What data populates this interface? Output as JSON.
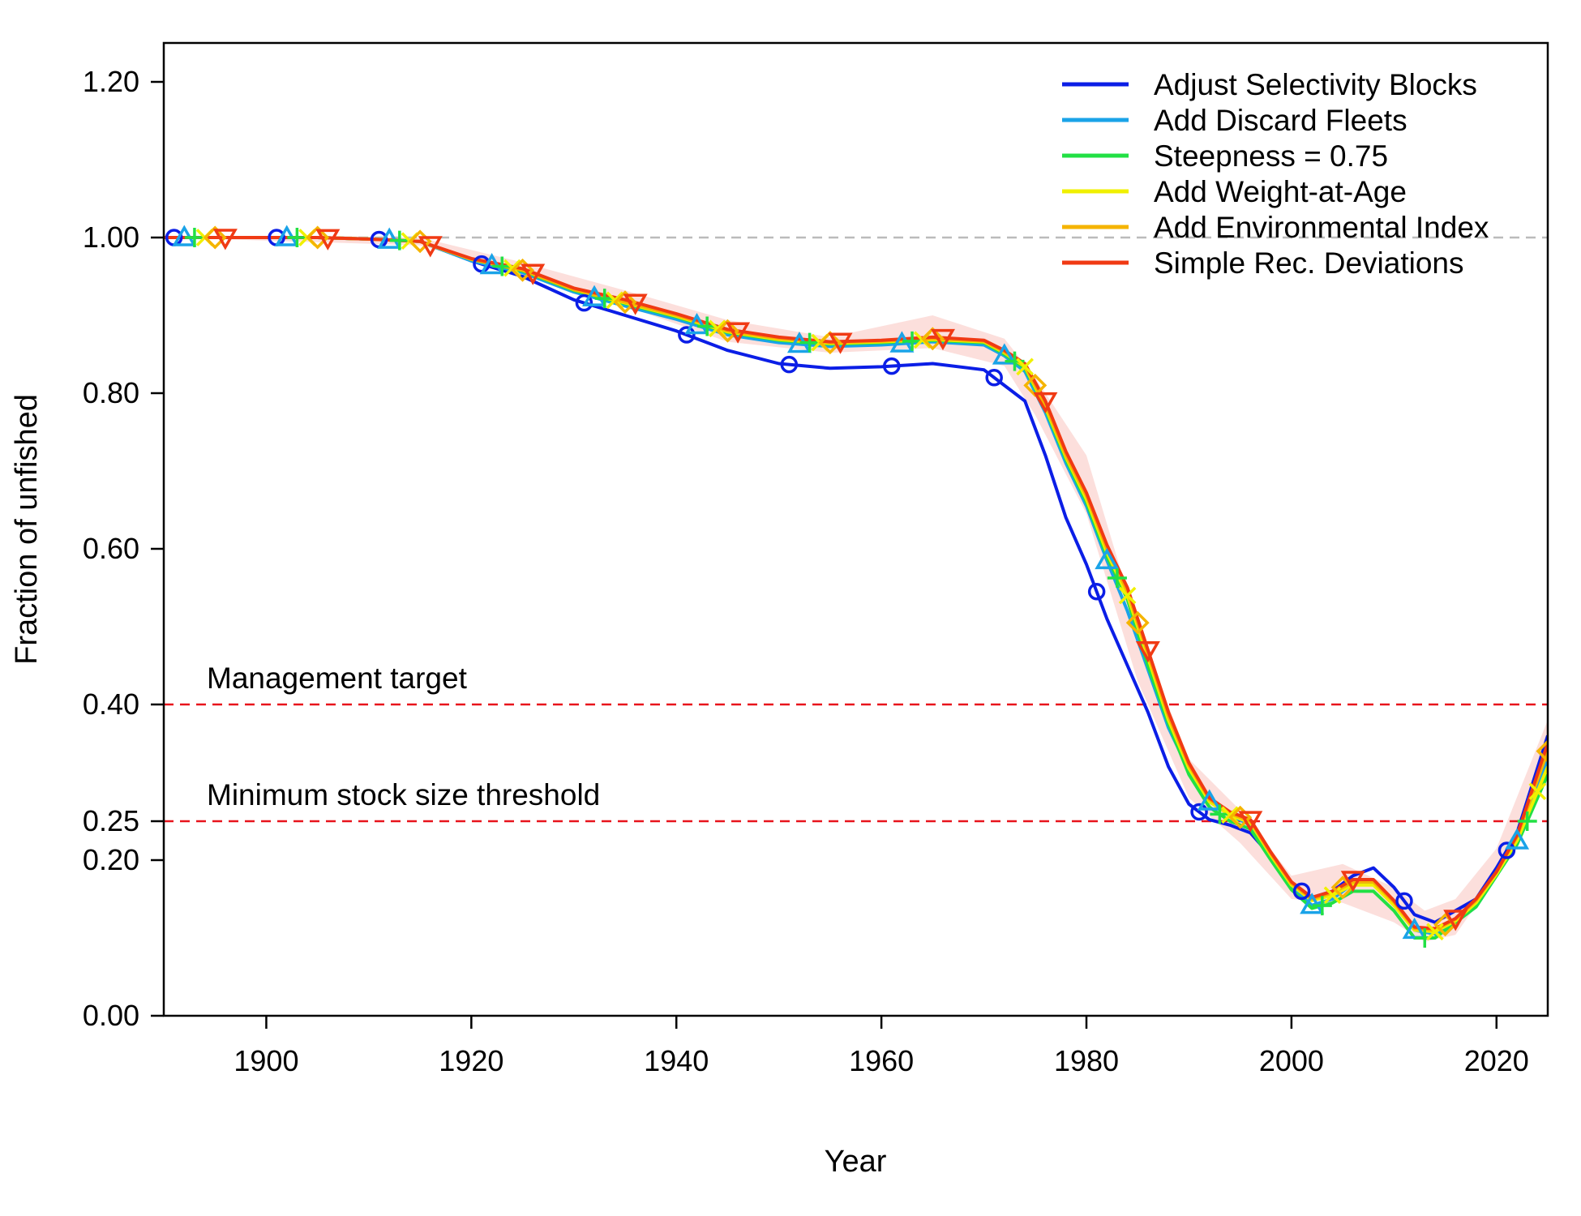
{
  "chart_data": {
    "type": "line",
    "title": "",
    "xlabel": "Year",
    "ylabel": "Fraction of unfished",
    "xlim": [
      1890,
      2025
    ],
    "ylim": [
      0,
      1.25
    ],
    "x_ticks": [
      1900,
      1920,
      1940,
      1960,
      1980,
      2000,
      2020
    ],
    "x_tick_labels": [
      "1900",
      "1920",
      "1940",
      "1960",
      "1980",
      "2000",
      "2020"
    ],
    "y_ticks": [
      0.0,
      0.2,
      0.25,
      0.4,
      0.6,
      0.8,
      1.0,
      1.2
    ],
    "y_tick_labels": [
      "0.00",
      "0.20",
      "0.25",
      "0.40",
      "0.60",
      "0.80",
      "1.00",
      "1.20"
    ],
    "grid": false,
    "legend_position": "top-right",
    "reference_lines": [
      {
        "y": 1.0,
        "color": "#bbbbbb",
        "label": ""
      },
      {
        "y": 0.4,
        "color": "#e8141c",
        "label": "Management target"
      },
      {
        "y": 0.25,
        "color": "#e8141c",
        "label": "Minimum stock size threshold"
      }
    ],
    "uncertainty_band": {
      "color": "#fbd7d3",
      "x": [
        1890,
        1915,
        1925,
        1935,
        1945,
        1955,
        1965,
        1972,
        1975,
        1980,
        1985,
        1990,
        1995,
        2000,
        2005,
        2010,
        2013,
        2016,
        2020,
        2025
      ],
      "lower": [
        1.0,
        0.99,
        0.952,
        0.912,
        0.866,
        0.852,
        0.858,
        0.835,
        0.772,
        0.645,
        0.43,
        0.28,
        0.222,
        0.15,
        0.145,
        0.12,
        0.095,
        0.104,
        0.18,
        0.31
      ],
      "upper": [
        1.0,
        1.0,
        0.968,
        0.932,
        0.894,
        0.872,
        0.9,
        0.87,
        0.82,
        0.72,
        0.5,
        0.33,
        0.264,
        0.18,
        0.195,
        0.165,
        0.135,
        0.15,
        0.215,
        0.38
      ]
    },
    "x": [
      1890,
      1895,
      1900,
      1905,
      1910,
      1915,
      1920,
      1925,
      1930,
      1935,
      1940,
      1945,
      1950,
      1955,
      1960,
      1965,
      1970,
      1972,
      1974,
      1976,
      1978,
      1980,
      1982,
      1984,
      1986,
      1988,
      1990,
      1992,
      1994,
      1996,
      1998,
      2000,
      2002,
      2004,
      2006,
      2008,
      2010,
      2012,
      2014,
      2016,
      2018,
      2020,
      2022,
      2025
    ],
    "series": [
      {
        "name": "Adjust Selectivity Blocks",
        "color": "#0b1ee6",
        "marker": "circle",
        "values": [
          1.0,
          1.0,
          1.0,
          1.0,
          0.998,
          0.995,
          0.97,
          0.95,
          0.92,
          0.9,
          0.88,
          0.855,
          0.838,
          0.832,
          0.834,
          0.838,
          0.83,
          0.81,
          0.79,
          0.72,
          0.64,
          0.58,
          0.51,
          0.45,
          0.39,
          0.32,
          0.272,
          0.252,
          0.245,
          0.235,
          0.205,
          0.168,
          0.152,
          0.16,
          0.18,
          0.19,
          0.165,
          0.13,
          0.12,
          0.135,
          0.15,
          0.19,
          0.235,
          0.36
        ]
      },
      {
        "name": "Add Discard Fleets",
        "color": "#1aa3e8",
        "marker": "triangle-up",
        "values": [
          1.0,
          1.0,
          1.0,
          1.0,
          0.998,
          0.995,
          0.97,
          0.955,
          0.93,
          0.912,
          0.895,
          0.875,
          0.865,
          0.86,
          0.862,
          0.866,
          0.862,
          0.848,
          0.828,
          0.775,
          0.71,
          0.655,
          0.585,
          0.52,
          0.445,
          0.37,
          0.315,
          0.275,
          0.258,
          0.245,
          0.205,
          0.165,
          0.142,
          0.15,
          0.17,
          0.17,
          0.145,
          0.11,
          0.105,
          0.12,
          0.14,
          0.18,
          0.225,
          0.33
        ]
      },
      {
        "name": "Steepness = 0.75",
        "color": "#22e044",
        "marker": "plus",
        "values": [
          1.0,
          1.0,
          1.0,
          1.0,
          0.998,
          0.995,
          0.972,
          0.957,
          0.932,
          0.915,
          0.898,
          0.878,
          0.868,
          0.863,
          0.865,
          0.868,
          0.865,
          0.85,
          0.832,
          0.78,
          0.715,
          0.66,
          0.59,
          0.535,
          0.45,
          0.375,
          0.31,
          0.268,
          0.25,
          0.24,
          0.2,
          0.162,
          0.138,
          0.145,
          0.16,
          0.16,
          0.135,
          0.1,
          0.1,
          0.12,
          0.14,
          0.18,
          0.22,
          0.31
        ]
      },
      {
        "name": "Add Weight-at-Age",
        "color": "#f0f000",
        "marker": "x",
        "values": [
          1.0,
          1.0,
          1.0,
          1.0,
          0.998,
          0.995,
          0.972,
          0.958,
          0.933,
          0.916,
          0.899,
          0.879,
          0.869,
          0.864,
          0.866,
          0.869,
          0.866,
          0.852,
          0.834,
          0.782,
          0.718,
          0.664,
          0.595,
          0.54,
          0.46,
          0.38,
          0.318,
          0.275,
          0.258,
          0.248,
          0.206,
          0.168,
          0.148,
          0.155,
          0.168,
          0.168,
          0.142,
          0.11,
          0.108,
          0.122,
          0.145,
          0.182,
          0.225,
          0.32
        ]
      },
      {
        "name": "Add Environmental Index",
        "color": "#f5b400",
        "marker": "diamond",
        "values": [
          1.0,
          1.0,
          1.0,
          1.0,
          0.998,
          0.995,
          0.972,
          0.958,
          0.933,
          0.917,
          0.9,
          0.88,
          0.87,
          0.865,
          0.867,
          0.87,
          0.867,
          0.853,
          0.835,
          0.785,
          0.72,
          0.668,
          0.6,
          0.545,
          0.465,
          0.385,
          0.322,
          0.278,
          0.26,
          0.25,
          0.208,
          0.17,
          0.15,
          0.158,
          0.172,
          0.172,
          0.146,
          0.112,
          0.11,
          0.124,
          0.148,
          0.185,
          0.23,
          0.34
        ]
      },
      {
        "name": "Simple Rec. Deviations",
        "color": "#f03a14",
        "marker": "triangle-down",
        "values": [
          1.0,
          1.0,
          1.0,
          1.0,
          0.998,
          0.995,
          0.973,
          0.96,
          0.935,
          0.92,
          0.902,
          0.882,
          0.872,
          0.866,
          0.868,
          0.872,
          0.868,
          0.855,
          0.838,
          0.79,
          0.725,
          0.672,
          0.605,
          0.55,
          0.47,
          0.39,
          0.325,
          0.28,
          0.262,
          0.252,
          0.21,
          0.172,
          0.152,
          0.16,
          0.175,
          0.175,
          0.148,
          0.114,
          0.112,
          0.125,
          0.15,
          0.185,
          0.232,
          0.35
        ]
      }
    ]
  }
}
